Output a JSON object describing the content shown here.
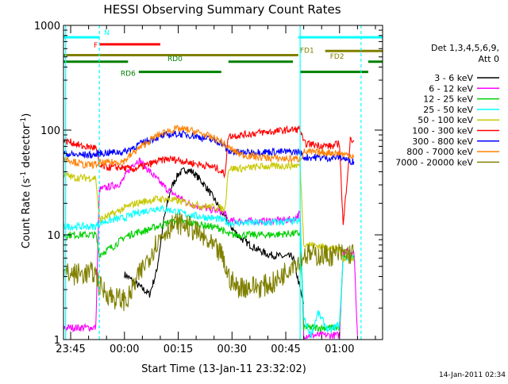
{
  "chart_data": {
    "type": "line",
    "title": "HESSI Observing Summary Count Rates",
    "xlabel": "Start Time (13-Jan-11 23:32:02)",
    "ylabel": "Count Rate (s",
    "ylabel_sup": "-1",
    "ylabel_tail": " detector",
    "ylabel_sup2": "-1",
    "ylabel_end": ")",
    "y_scale": "log",
    "ylim": [
      1,
      1000
    ],
    "xlim_minutes": [
      -17.0,
      72.0
    ],
    "y_ticks": [
      {
        "value": 1,
        "label": "1"
      },
      {
        "value": 10,
        "label": "10"
      },
      {
        "value": 100,
        "label": "100"
      },
      {
        "value": 1000,
        "label": "1000"
      }
    ],
    "x_ticks": [
      {
        "minute": -15,
        "label": "23:45"
      },
      {
        "minute": 0,
        "label": "00:00"
      },
      {
        "minute": 15,
        "label": "00:15"
      },
      {
        "minute": 30,
        "label": "00:30"
      },
      {
        "minute": 45,
        "label": "00:45"
      },
      {
        "minute": 60,
        "label": "01:00"
      }
    ],
    "legend_position": "right",
    "legend_header": [
      "Det 1,3,4,5,6,9,",
      "Att 0"
    ],
    "series": [
      {
        "name": "3 - 6 keV",
        "color": "#000000",
        "points": [
          [
            0,
            4.2
          ],
          [
            7,
            2.7
          ],
          [
            9,
            4.5
          ],
          [
            11,
            14
          ],
          [
            13,
            28
          ],
          [
            15,
            38
          ],
          [
            17,
            42
          ],
          [
            19,
            40
          ],
          [
            21,
            34
          ],
          [
            23,
            28
          ],
          [
            25,
            22
          ],
          [
            27,
            17
          ],
          [
            29,
            13
          ],
          [
            31,
            10.5
          ],
          [
            33,
            9
          ],
          [
            35,
            8
          ],
          [
            38,
            7
          ],
          [
            40,
            6.5
          ],
          [
            44,
            6.2
          ],
          [
            47,
            6.2
          ],
          [
            49,
            3.0
          ],
          [
            50,
            2.2
          ]
        ]
      },
      {
        "name": "6 - 12 keV",
        "color": "#ff00ff",
        "points": [
          [
            -17,
            1.3
          ],
          [
            -8,
            1.3
          ],
          [
            -7,
            27
          ],
          [
            -1,
            31
          ],
          [
            2,
            46
          ],
          [
            4,
            52
          ],
          [
            6,
            44
          ],
          [
            9,
            34
          ],
          [
            12,
            27
          ],
          [
            15,
            23
          ],
          [
            18,
            20
          ],
          [
            21,
            18.5
          ],
          [
            24,
            17.5
          ],
          [
            26,
            17
          ],
          [
            28,
            16
          ],
          [
            29,
            13.5
          ],
          [
            33,
            13.5
          ],
          [
            40,
            13.5
          ],
          [
            47,
            14
          ],
          [
            49,
            16
          ],
          [
            50,
            1.1
          ],
          [
            60,
            1.1
          ],
          [
            61,
            7
          ],
          [
            64,
            7
          ],
          [
            65,
            1.1
          ]
        ]
      },
      {
        "name": "12 - 25 keV",
        "color": "#00d000",
        "points": [
          [
            -17,
            10
          ],
          [
            -8,
            10
          ],
          [
            -7,
            6.5
          ],
          [
            -3,
            7.8
          ],
          [
            0,
            9.5
          ],
          [
            3,
            10.5
          ],
          [
            6,
            11
          ],
          [
            9,
            12
          ],
          [
            12,
            13
          ],
          [
            15,
            13.5
          ],
          [
            18,
            13
          ],
          [
            21,
            12.5
          ],
          [
            24,
            12
          ],
          [
            27,
            11.5
          ],
          [
            28,
            10.5
          ],
          [
            29,
            10
          ],
          [
            33,
            10
          ],
          [
            40,
            10
          ],
          [
            47,
            10.3
          ],
          [
            49,
            10.3
          ],
          [
            50,
            1.3
          ],
          [
            60,
            1.3
          ],
          [
            61,
            6
          ],
          [
            64,
            6
          ]
        ]
      },
      {
        "name": "25 - 50 keV",
        "color": "#00ffff",
        "points": [
          [
            -17,
            12
          ],
          [
            -8,
            12
          ],
          [
            -7,
            13
          ],
          [
            -3,
            14
          ],
          [
            0,
            14.5
          ],
          [
            3,
            16
          ],
          [
            6,
            17
          ],
          [
            9,
            18
          ],
          [
            12,
            17.5
          ],
          [
            15,
            16.5
          ],
          [
            18,
            15.5
          ],
          [
            21,
            15
          ],
          [
            24,
            14.5
          ],
          [
            27,
            14
          ],
          [
            28,
            13.5
          ],
          [
            29,
            13
          ],
          [
            33,
            13
          ],
          [
            40,
            13
          ],
          [
            47,
            13.5
          ],
          [
            49,
            13.5
          ],
          [
            50,
            1.6
          ],
          [
            52,
            1.1
          ],
          [
            54,
            1.8
          ],
          [
            57,
            1.2
          ],
          [
            60,
            1.4
          ],
          [
            61,
            6
          ],
          [
            64,
            6
          ]
        ]
      },
      {
        "name": "50 - 100 keV",
        "color": "#c8c800",
        "points": [
          [
            -17,
            38
          ],
          [
            -14,
            35
          ],
          [
            -8,
            35
          ],
          [
            -7,
            14
          ],
          [
            -3,
            16
          ],
          [
            0,
            18
          ],
          [
            3,
            20
          ],
          [
            6,
            21
          ],
          [
            9,
            22
          ],
          [
            12,
            22
          ],
          [
            15,
            21
          ],
          [
            18,
            20
          ],
          [
            21,
            19
          ],
          [
            24,
            18.5
          ],
          [
            27,
            18
          ],
          [
            28,
            17.5
          ],
          [
            29,
            43
          ],
          [
            33,
            43
          ],
          [
            38,
            45
          ],
          [
            42,
            45
          ],
          [
            47,
            46
          ],
          [
            49,
            46
          ],
          [
            50,
            8.3
          ],
          [
            60,
            7.2
          ],
          [
            61,
            6
          ],
          [
            64,
            5.8
          ]
        ]
      },
      {
        "name": "100 - 300 keV",
        "color": "#ff0000",
        "points": [
          [
            -17,
            80
          ],
          [
            -14,
            75
          ],
          [
            -12,
            70
          ],
          [
            -8,
            68
          ],
          [
            -7,
            45
          ],
          [
            -4,
            44
          ],
          [
            -1,
            44
          ],
          [
            2,
            42
          ],
          [
            6,
            46
          ],
          [
            9,
            50
          ],
          [
            12,
            53
          ],
          [
            15,
            52
          ],
          [
            18,
            49
          ],
          [
            21,
            47
          ],
          [
            24,
            45
          ],
          [
            26,
            43
          ],
          [
            27,
            40
          ],
          [
            28,
            38
          ],
          [
            29,
            88
          ],
          [
            33,
            90
          ],
          [
            38,
            95
          ],
          [
            42,
            97
          ],
          [
            45,
            100
          ],
          [
            49,
            102
          ],
          [
            50,
            75
          ],
          [
            54,
            72
          ],
          [
            58,
            70
          ],
          [
            60,
            75
          ],
          [
            61,
            12
          ],
          [
            63,
            80
          ],
          [
            64,
            80
          ]
        ]
      },
      {
        "name": "300 - 800 keV",
        "color": "#0000ff",
        "points": [
          [
            -17,
            60
          ],
          [
            -14,
            58
          ],
          [
            -8,
            58
          ],
          [
            -7,
            60
          ],
          [
            -4,
            61
          ],
          [
            -1,
            62
          ],
          [
            0,
            62
          ],
          [
            3,
            70
          ],
          [
            6,
            78
          ],
          [
            9,
            85
          ],
          [
            12,
            90
          ],
          [
            15,
            92
          ],
          [
            18,
            90
          ],
          [
            21,
            86
          ],
          [
            24,
            81
          ],
          [
            27,
            76
          ],
          [
            29,
            62
          ],
          [
            33,
            61
          ],
          [
            38,
            62
          ],
          [
            42,
            62
          ],
          [
            47,
            62
          ],
          [
            49,
            62
          ],
          [
            50,
            55
          ],
          [
            54,
            55
          ],
          [
            58,
            54
          ],
          [
            60,
            56
          ],
          [
            62,
            52
          ],
          [
            64,
            50
          ]
        ]
      },
      {
        "name": "800 - 7000 keV",
        "color": "#ff8000",
        "points": [
          [
            -17,
            55
          ],
          [
            -14,
            50
          ],
          [
            -11,
            46
          ],
          [
            -8,
            47
          ],
          [
            -7,
            48
          ],
          [
            -4,
            49
          ],
          [
            -1,
            50
          ],
          [
            0,
            51
          ],
          [
            3,
            63
          ],
          [
            6,
            75
          ],
          [
            9,
            88
          ],
          [
            12,
            98
          ],
          [
            15,
            103
          ],
          [
            18,
            100
          ],
          [
            21,
            94
          ],
          [
            24,
            86
          ],
          [
            27,
            78
          ],
          [
            29,
            68
          ],
          [
            31,
            62
          ],
          [
            33,
            58
          ],
          [
            38,
            55
          ],
          [
            42,
            54
          ],
          [
            47,
            53
          ],
          [
            49,
            53
          ],
          [
            50,
            62
          ],
          [
            54,
            61
          ],
          [
            58,
            61
          ],
          [
            60,
            60
          ],
          [
            62,
            58
          ],
          [
            64,
            57
          ]
        ]
      },
      {
        "name": "7000 - 20000 keV",
        "color": "#808000",
        "points": [
          [
            -17,
            4.3
          ],
          [
            -14,
            4.2
          ],
          [
            -10,
            4.3
          ],
          [
            -8,
            4.3
          ],
          [
            -7,
            3.2
          ],
          [
            -3,
            2.5
          ],
          [
            0,
            2.4
          ],
          [
            1,
            2.4
          ],
          [
            3,
            3.5
          ],
          [
            6,
            5.5
          ],
          [
            9,
            8.5
          ],
          [
            12,
            11.5
          ],
          [
            15,
            13
          ],
          [
            18,
            12
          ],
          [
            21,
            10
          ],
          [
            24,
            8
          ],
          [
            27,
            6.5
          ],
          [
            29,
            4.0
          ],
          [
            31,
            3.2
          ],
          [
            33,
            3.2
          ],
          [
            38,
            3.2
          ],
          [
            42,
            3.5
          ],
          [
            45,
            4.5
          ],
          [
            47,
            5.5
          ],
          [
            49,
            5.5
          ],
          [
            50,
            6.5
          ],
          [
            54,
            6.4
          ],
          [
            58,
            6.4
          ],
          [
            60,
            6.6
          ],
          [
            64,
            6.6
          ]
        ]
      }
    ],
    "attenuator_bars": [
      {
        "label": "N",
        "color": "#00ffff",
        "level": 770,
        "segments": [
          [
            -17,
            -7
          ],
          [
            48.5,
            72
          ]
        ]
      },
      {
        "label": "F",
        "color": "#ff0000",
        "level": 660,
        "segments": [
          [
            -7,
            10
          ]
        ]
      },
      {
        "label": "FD1",
        "color": "#808000",
        "level": 520,
        "segments": [
          [
            -17,
            48.5
          ]
        ]
      },
      {
        "label": "FD2",
        "color": "#808000",
        "level": 570,
        "segments": [
          [
            56,
            72
          ]
        ]
      },
      {
        "label": "RD0",
        "color": "#008000",
        "level": 450,
        "segments": [
          [
            -17,
            1
          ],
          [
            29,
            47
          ],
          [
            68,
            72
          ]
        ]
      },
      {
        "label": "RD6",
        "color": "#008000",
        "level": 360,
        "segments": [
          [
            4,
            27
          ],
          [
            49,
            68
          ]
        ]
      }
    ],
    "vertical_markers": [
      {
        "minute": -7,
        "color": "#00ffff",
        "style": "dashed"
      },
      {
        "minute": 49,
        "color": "#00ffff",
        "style": "solid"
      },
      {
        "minute": 66,
        "color": "#00ffff",
        "style": "dashed"
      },
      {
        "minute": -16.4,
        "color": "#00ffff",
        "style": "solid"
      }
    ],
    "footer_stamp": "14-Jan-2011 02:34"
  }
}
